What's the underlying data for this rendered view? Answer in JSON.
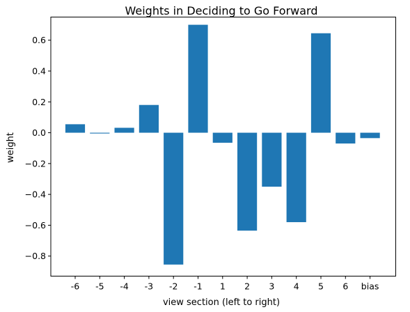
{
  "chart_data": {
    "type": "bar",
    "title": "Weights in Deciding to Go Forward",
    "xlabel": "view section (left to right)",
    "ylabel": "weight",
    "categories": [
      "-6",
      "-5",
      "-4",
      "-3",
      "-2",
      "-1",
      "1",
      "2",
      "3",
      "4",
      "5",
      "6",
      "bias"
    ],
    "values": [
      0.055,
      -0.005,
      0.032,
      0.18,
      -0.855,
      0.7,
      -0.065,
      -0.635,
      -0.35,
      -0.58,
      0.645,
      -0.07,
      -0.035
    ],
    "ylim": [
      -0.93,
      0.75
    ],
    "yticks": [
      -0.8,
      -0.6,
      -0.4,
      -0.2,
      0.0,
      0.2,
      0.4,
      0.6
    ],
    "ytick_labels": [
      "−0.8",
      "−0.6",
      "−0.4",
      "−0.2",
      "0.0",
      "0.2",
      "0.4",
      "0.6"
    ],
    "bar_color": "#1f77b4",
    "grid": false,
    "legend": "none"
  }
}
